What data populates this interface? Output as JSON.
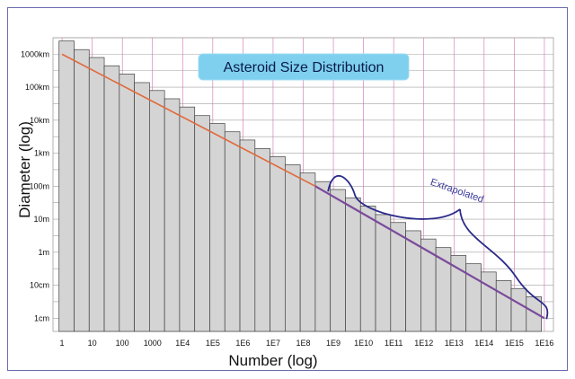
{
  "chart_data": {
    "type": "bar",
    "title": "Asteroid Size Distribution",
    "xlabel": "Number (log)",
    "ylabel": "Diameter (log)",
    "x_scale": "log",
    "y_scale": "log",
    "x_ticks": [
      "1",
      "10",
      "100",
      "1000",
      "1E4",
      "1E5",
      "1E6",
      "1E7",
      "1E8",
      "1E9",
      "1E10",
      "1E11",
      "1E12",
      "1E13",
      "1E14",
      "1E15",
      "1E16"
    ],
    "y_ticks": [
      "1000km",
      "100km",
      "10km",
      "1km",
      "100m",
      "10m",
      "1m",
      "10cm",
      "1cm"
    ],
    "x_tick_exponents": [
      0,
      1,
      2,
      3,
      4,
      5,
      6,
      7,
      8,
      9,
      10,
      11,
      12,
      13,
      14,
      15,
      16
    ],
    "y_tick_exponents_m": [
      6,
      5,
      4,
      3,
      2,
      1,
      0,
      -1,
      -2
    ],
    "xlim_exponent": [
      -0.3,
      16.3
    ],
    "ylim_exponent_m": [
      -2.4,
      6.5
    ],
    "bar_width_exponent": 0.5,
    "bars": {
      "x_exponent": [
        0.15,
        0.65,
        1.15,
        1.65,
        2.15,
        2.65,
        3.15,
        3.65,
        4.15,
        4.65,
        5.15,
        5.65,
        6.15,
        6.65,
        7.15,
        7.65,
        8.15,
        8.65,
        9.15,
        9.65,
        10.15,
        10.65,
        11.15,
        11.65,
        12.15,
        12.65,
        13.15,
        13.65,
        14.15,
        14.65,
        15.15,
        15.65
      ],
      "diameter_exponent_m": [
        6.4,
        6.14,
        5.9,
        5.65,
        5.4,
        5.14,
        4.9,
        4.65,
        4.4,
        4.14,
        3.9,
        3.65,
        3.4,
        3.14,
        2.9,
        2.65,
        2.4,
        2.14,
        1.9,
        1.65,
        1.4,
        1.14,
        0.9,
        0.65,
        0.4,
        0.14,
        -0.1,
        -0.35,
        -0.6,
        -0.86,
        -1.1,
        -1.35
      ]
    },
    "trend_line": {
      "observed_color": "#e06a3c",
      "extrapolated_color": "#7a4a9a",
      "points": [
        {
          "x_exponent": 0,
          "diameter_exponent_m": 6.0
        },
        {
          "x_exponent": 8.4,
          "diameter_exponent_m": 2.0
        },
        {
          "x_exponent": 16.0,
          "diameter_exponent_m": -2.0
        }
      ]
    },
    "annotations": [
      {
        "text": "Extrapolated",
        "range_x_exponent": [
          9.0,
          16.0
        ]
      }
    ],
    "grid": true,
    "colors": {
      "bar_fill": "#d4d4d4",
      "bar_stroke": "#404040",
      "grid_vertical": "#d070b0",
      "grid_horizontal": "#a0a0a0",
      "title_bg": "#7ed0ee",
      "brace": "#2a2a8a",
      "frame": "#6b6bb0"
    }
  }
}
